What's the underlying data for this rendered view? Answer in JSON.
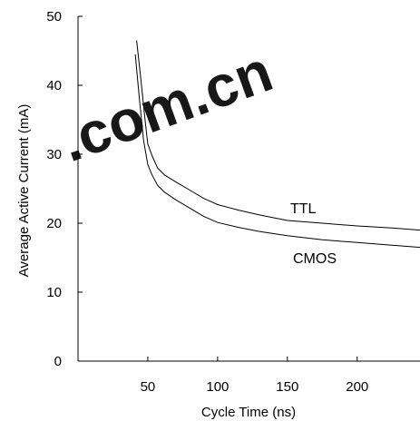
{
  "chart_data": {
    "type": "line",
    "title": "",
    "xlabel": "Cycle Time (ns)",
    "ylabel": "Average Active Current (mA)",
    "xlim": [
      0,
      245
    ],
    "ylim": [
      0,
      50
    ],
    "x_ticks": [
      50,
      100,
      150,
      200
    ],
    "y_ticks": [
      0,
      10,
      20,
      30,
      40,
      50
    ],
    "grid": false,
    "series": [
      {
        "name": "TTL",
        "x": [
          42,
          45,
          48,
          50,
          53,
          57,
          62,
          70,
          80,
          90,
          100,
          115,
          130,
          150,
          175,
          200,
          225,
          245
        ],
        "y": [
          46.5,
          41.0,
          35.0,
          31.5,
          29.8,
          28.0,
          27.0,
          26.0,
          24.8,
          23.6,
          22.7,
          21.9,
          21.2,
          20.4,
          20.0,
          19.6,
          19.3,
          19.0
        ]
      },
      {
        "name": "CMOS",
        "x": [
          41,
          44,
          47,
          50,
          53,
          57,
          62,
          70,
          80,
          90,
          100,
          115,
          130,
          150,
          175,
          200,
          225,
          245
        ],
        "y": [
          44.5,
          38.0,
          32.0,
          28.5,
          27.0,
          25.5,
          24.5,
          23.4,
          22.2,
          21.0,
          20.1,
          19.4,
          18.8,
          18.2,
          17.6,
          17.2,
          16.8,
          16.5
        ]
      }
    ]
  },
  "watermark": {
    "text": ".com.cn",
    "color": "#ff2020"
  }
}
